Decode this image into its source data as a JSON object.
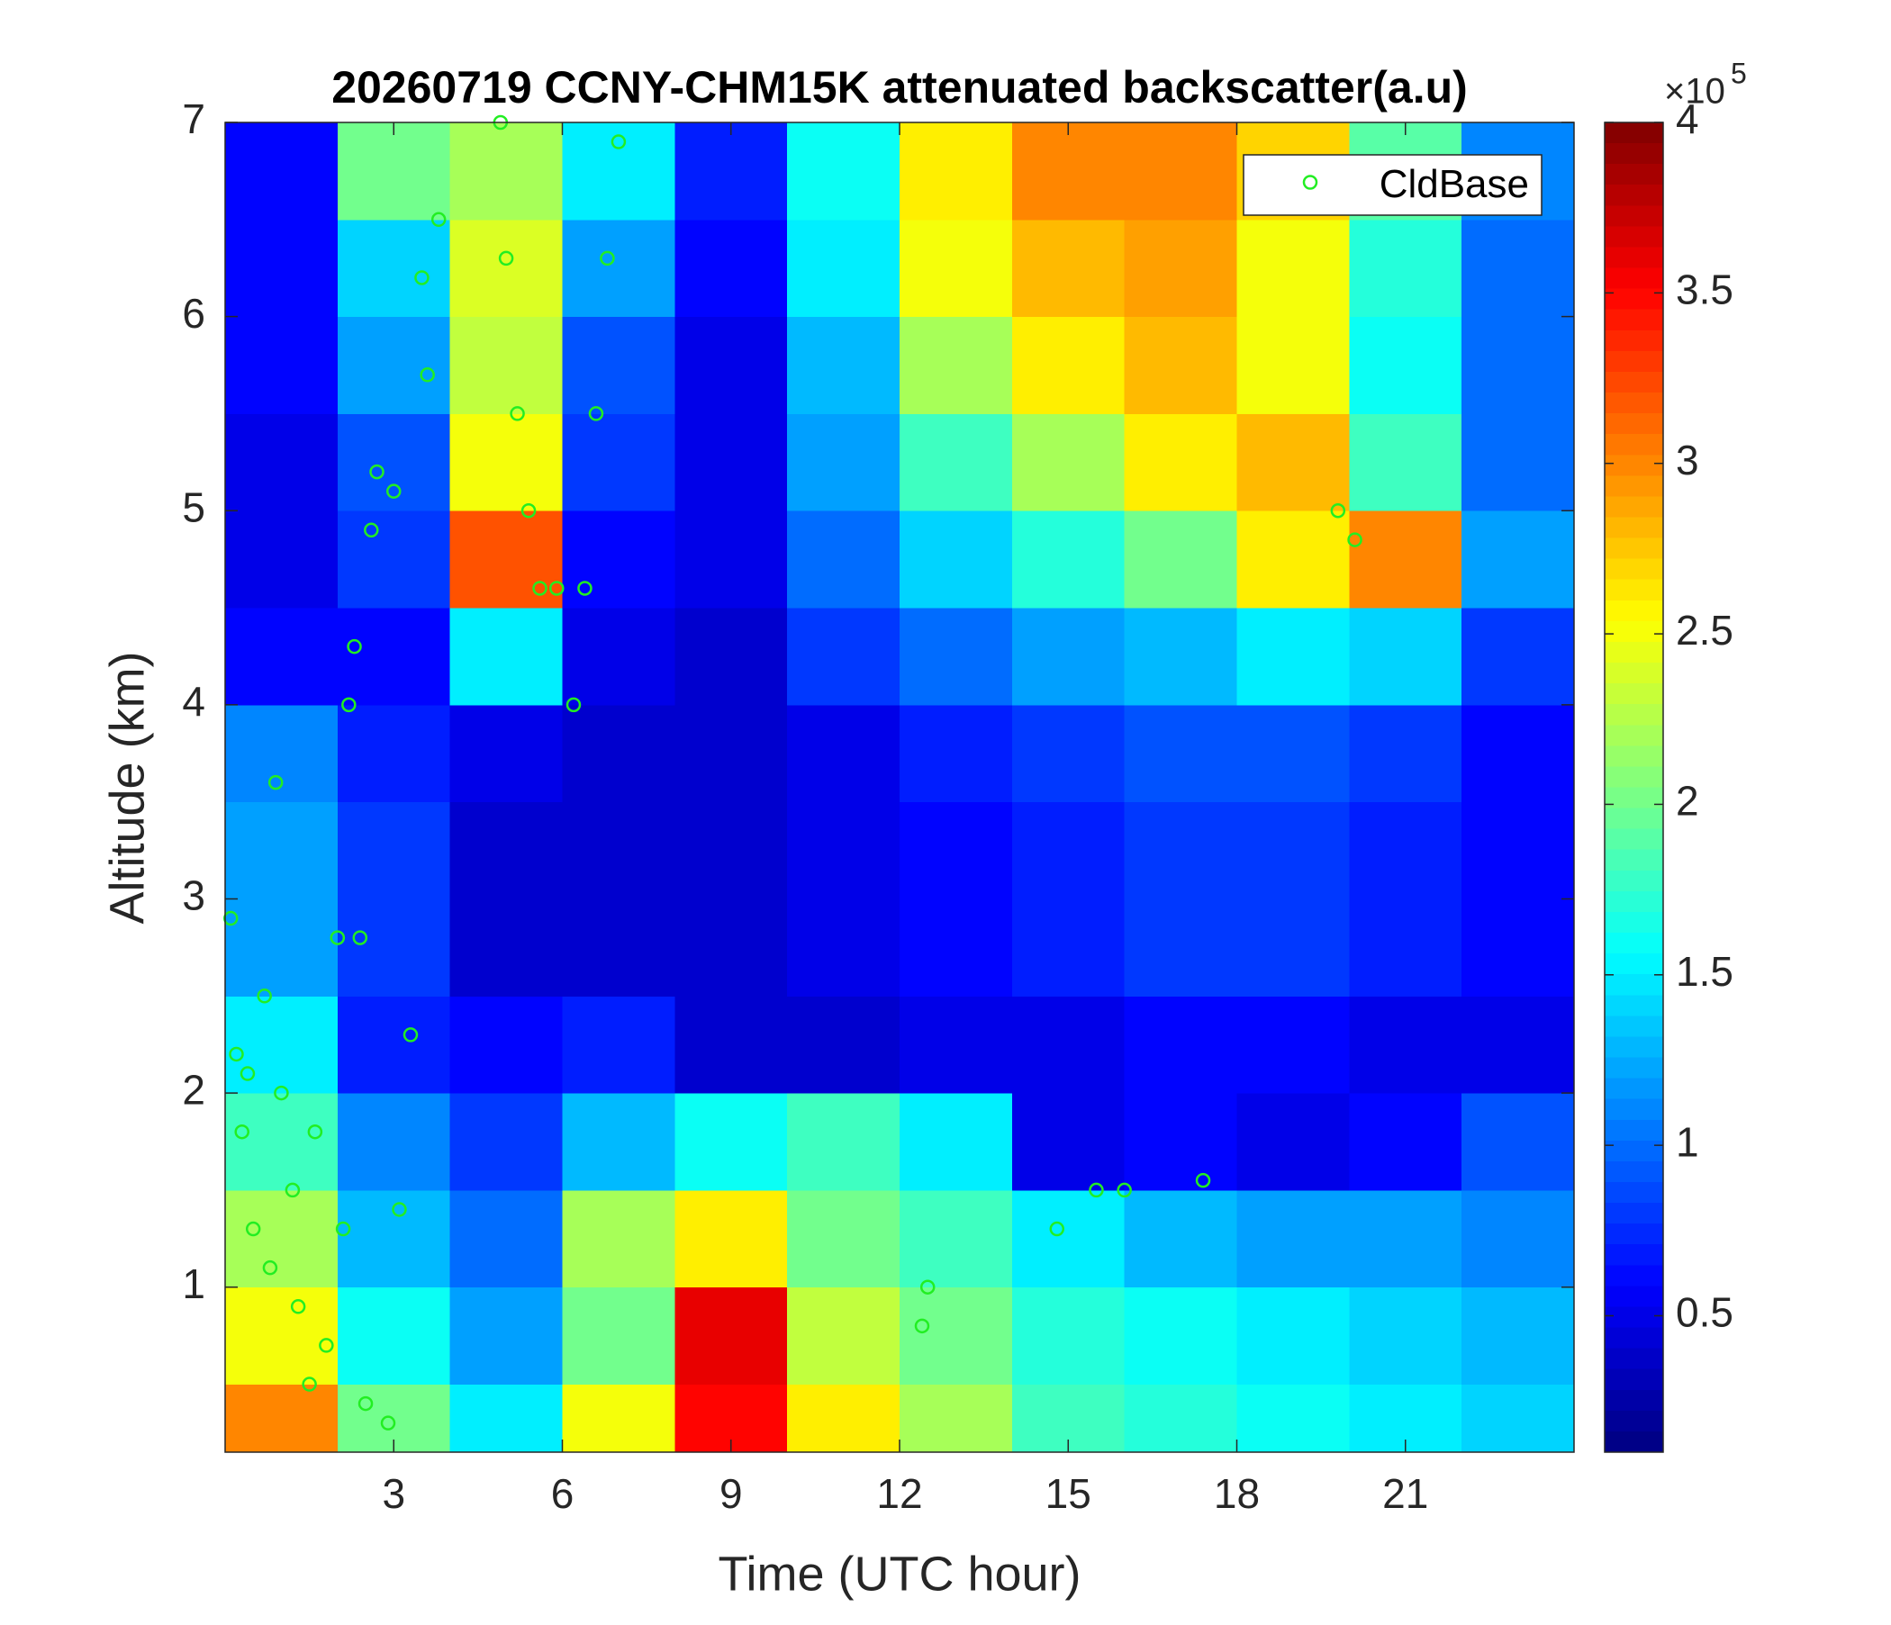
{
  "chart_data": {
    "type": "heatmap",
    "title": "20260719 CCNY-CHM15K attenuated backscatter(a.u)",
    "xlabel": "Time (UTC hour)",
    "ylabel": "Altitude (km)",
    "xlim": [
      0,
      24
    ],
    "xticks": [
      3,
      6,
      9,
      12,
      15,
      18,
      21
    ],
    "ylim": [
      0.15,
      7
    ],
    "yticks": [
      1,
      2,
      3,
      4,
      5,
      6,
      7
    ],
    "x_edges": [
      0,
      2,
      4,
      6,
      8,
      10,
      12,
      14,
      16,
      18,
      20,
      22,
      24
    ],
    "y_edges": [
      0.15,
      0.5,
      1,
      1.5,
      2,
      2.5,
      3,
      3.5,
      4,
      4.5,
      5,
      5.5,
      6,
      6.5,
      7
    ],
    "z": [
      [
        3.0,
        2.0,
        1.5,
        2.5,
        3.5,
        2.6,
        2.2,
        1.8,
        1.7,
        1.6,
        1.5,
        1.4
      ],
      [
        2.5,
        1.6,
        1.2,
        2.0,
        3.6,
        2.3,
        2.0,
        1.7,
        1.6,
        1.5,
        1.4,
        1.3
      ],
      [
        2.2,
        1.3,
        1.0,
        2.2,
        2.6,
        2.0,
        1.8,
        1.5,
        1.3,
        1.2,
        1.2,
        1.1
      ],
      [
        1.8,
        1.1,
        0.8,
        1.3,
        1.6,
        1.8,
        1.5,
        0.5,
        0.6,
        0.5,
        0.6,
        0.9
      ],
      [
        1.5,
        0.7,
        0.6,
        0.7,
        0.4,
        0.4,
        0.5,
        0.5,
        0.6,
        0.6,
        0.5,
        0.5
      ],
      [
        1.2,
        0.8,
        0.4,
        0.4,
        0.4,
        0.5,
        0.6,
        0.7,
        0.8,
        0.8,
        0.7,
        0.6
      ],
      [
        1.2,
        0.8,
        0.4,
        0.4,
        0.4,
        0.5,
        0.6,
        0.7,
        0.8,
        0.8,
        0.7,
        0.6
      ],
      [
        1.1,
        0.7,
        0.5,
        0.4,
        0.4,
        0.5,
        0.7,
        0.8,
        0.9,
        0.9,
        0.8,
        0.6
      ],
      [
        0.6,
        0.6,
        1.5,
        0.5,
        0.4,
        0.8,
        1.0,
        1.2,
        1.3,
        1.5,
        1.4,
        0.8
      ],
      [
        0.5,
        0.8,
        3.2,
        0.6,
        0.5,
        1.0,
        1.4,
        1.7,
        2.0,
        2.6,
        3.0,
        1.2
      ],
      [
        0.5,
        0.9,
        2.5,
        0.8,
        0.5,
        1.2,
        1.8,
        2.2,
        2.6,
        2.8,
        1.8,
        1.0
      ],
      [
        0.6,
        1.2,
        2.3,
        0.9,
        0.5,
        1.3,
        2.2,
        2.6,
        2.8,
        2.5,
        1.6,
        1.0
      ],
      [
        0.6,
        1.4,
        2.4,
        1.2,
        0.6,
        1.5,
        2.5,
        2.8,
        2.9,
        2.5,
        1.7,
        1.0
      ],
      [
        0.6,
        2.0,
        2.2,
        1.5,
        0.7,
        1.6,
        2.6,
        3.0,
        3.0,
        2.7,
        1.9,
        1.1
      ]
    ],
    "colormap": "jet",
    "clim": [
      0.1,
      4
    ],
    "cticks": [
      0.5,
      1,
      1.5,
      2,
      2.5,
      3,
      3.5,
      4
    ],
    "colorbar_multiplier": "×10",
    "colorbar_exponent": 5,
    "series": [
      {
        "name": "CldBase",
        "color": "#22ee22",
        "x": [
          0.1,
          0.2,
          0.3,
          0.4,
          0.5,
          0.7,
          0.8,
          0.9,
          1.0,
          1.2,
          1.3,
          1.5,
          1.6,
          1.8,
          2.0,
          2.1,
          2.2,
          2.3,
          2.4,
          2.5,
          2.6,
          2.7,
          2.9,
          3.0,
          3.1,
          3.3,
          3.5,
          3.6,
          3.8,
          4.9,
          5.0,
          5.2,
          5.4,
          5.6,
          5.9,
          6.2,
          6.4,
          6.6,
          6.8,
          7.0,
          12.4,
          12.5,
          14.8,
          15.5,
          16.0,
          17.4,
          19.8,
          20.1
        ],
        "values": [
          2.9,
          2.2,
          1.8,
          2.1,
          1.3,
          2.5,
          1.1,
          3.6,
          2.0,
          1.5,
          0.9,
          0.5,
          1.8,
          0.7,
          2.8,
          1.3,
          4.0,
          4.3,
          2.8,
          0.4,
          4.9,
          5.2,
          0.3,
          5.1,
          1.4,
          2.3,
          6.2,
          5.7,
          6.5,
          7.0,
          6.3,
          5.5,
          5.0,
          4.6,
          4.6,
          4.0,
          4.6,
          5.5,
          6.3,
          6.9,
          0.8,
          1.0,
          1.3,
          1.5,
          1.5,
          1.55,
          5.0,
          4.85
        ]
      }
    ],
    "legend": "northeast"
  }
}
